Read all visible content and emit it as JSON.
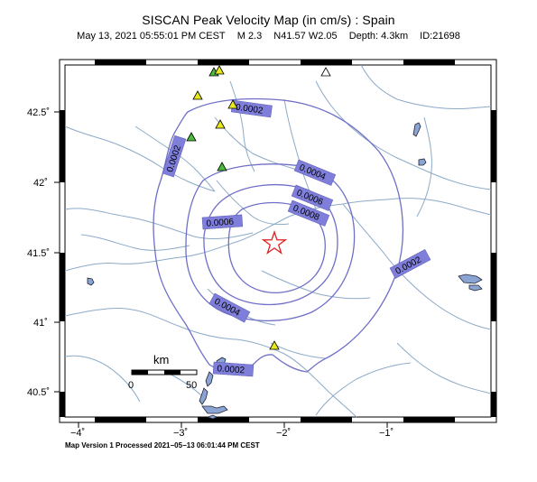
{
  "header": {
    "title": "SISCAN Peak Velocity Map (in cm/s) : Spain",
    "date": "May 13, 2021 05:55:01 PM CEST",
    "magnitude": "M 2.3",
    "location": "N41.57 W2.05",
    "depth": "Depth: 4.3km",
    "event_id": "ID:21698"
  },
  "axes": {
    "y_ticks": [
      "42.5˚",
      "42˚",
      "41.5˚",
      "41˚",
      "40.5˚"
    ],
    "x_ticks": [
      "−4˚",
      "−3˚",
      "−2˚",
      "−1˚"
    ]
  },
  "contour_labels": [
    "0.0002",
    "0.0002",
    "0.0002",
    "0.0002",
    "0.0004",
    "0.0004",
    "0.0006",
    "0.0006",
    "0.0008"
  ],
  "scale_bar": {
    "unit": "km",
    "min_label": "0",
    "max_label": "50"
  },
  "footer": "Map Version 1 Processed 2021−05−13 06:01:44 PM CEST",
  "colors": {
    "contour": "#6f6fc8",
    "label_bg": "#7f7fdb",
    "river": "#8caac8",
    "lake": "#8aa4d4",
    "epicenter": "#e02020",
    "station_yellow": "#e8e81a",
    "station_green": "#4cbb3c",
    "station_white": "#ffffff"
  },
  "icons": {
    "epicenter": "star-icon",
    "station": "triangle-icon"
  }
}
